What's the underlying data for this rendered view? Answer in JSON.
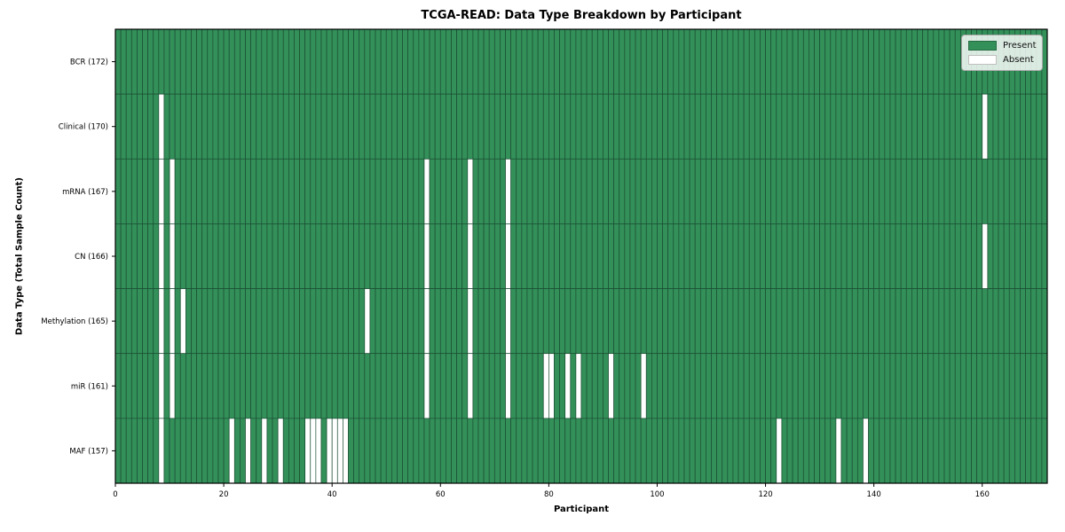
{
  "title": "TCGA-READ: Data Type Breakdown by Participant",
  "chart_data": {
    "type": "heatmap",
    "title": "TCGA-READ: Data Type Breakdown by Participant",
    "xlabel": "Participant",
    "ylabel": "Data Type (Total Sample Count)",
    "x_ticks": [
      0,
      20,
      40,
      60,
      80,
      100,
      120,
      140,
      160
    ],
    "x_range": [
      0,
      172
    ],
    "n_participants": 172,
    "grid": "cell-outlines",
    "legend_position": "upper right",
    "legend": {
      "entries": [
        {
          "label": "Present",
          "color": "#339059"
        },
        {
          "label": "Absent",
          "color": "#ffffff"
        }
      ]
    },
    "colors": {
      "present": "#339059",
      "absent": "#ffffff",
      "cell_edge": "#1b4d33",
      "frame": "#000000"
    },
    "rows": [
      {
        "label": "BCR (172)",
        "name": "BCR",
        "count": 172,
        "absent_participants": []
      },
      {
        "label": "Clinical (170)",
        "name": "Clinical",
        "count": 170,
        "absent_participants": [
          8,
          160
        ]
      },
      {
        "label": "mRNA (167)",
        "name": "mRNA",
        "count": 167,
        "absent_participants": [
          8,
          10,
          57,
          65,
          72
        ]
      },
      {
        "label": "CN (166)",
        "name": "CN",
        "count": 166,
        "absent_participants": [
          8,
          10,
          57,
          65,
          72,
          160
        ]
      },
      {
        "label": "Methylation (165)",
        "name": "Methylation",
        "count": 165,
        "absent_participants": [
          8,
          10,
          12,
          46,
          57,
          65,
          72
        ]
      },
      {
        "label": "miR (161)",
        "name": "miR",
        "count": 161,
        "absent_participants": [
          8,
          10,
          57,
          65,
          72,
          79,
          80,
          83,
          85,
          91,
          97
        ]
      },
      {
        "label": "MAF (157)",
        "name": "MAF",
        "count": 157,
        "absent_participants": [
          8,
          21,
          24,
          27,
          30,
          35,
          36,
          37,
          39,
          40,
          41,
          42,
          122,
          133,
          138
        ]
      }
    ]
  }
}
